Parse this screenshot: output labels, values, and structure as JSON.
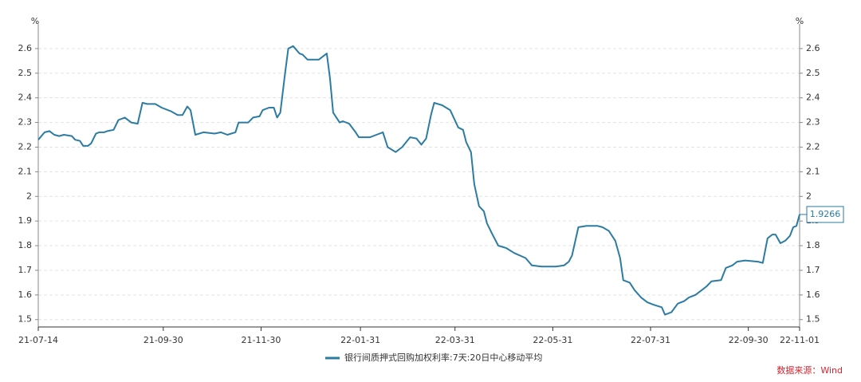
{
  "chart_data": {
    "type": "line",
    "y_unit": "%",
    "source": "数据来源：Wind",
    "x": [
      "21-07-14",
      "21-07-18",
      "21-07-21",
      "21-07-24",
      "21-07-27",
      "21-07-30",
      "21-08-04",
      "21-08-06",
      "21-08-09",
      "21-08-11",
      "21-08-14",
      "21-08-16",
      "21-08-19",
      "21-08-21",
      "21-08-24",
      "21-08-26",
      "21-08-30",
      "21-09-02",
      "21-09-06",
      "21-09-10",
      "21-09-14",
      "21-09-17",
      "21-09-20",
      "21-09-25",
      "21-09-29",
      "21-10-05",
      "21-10-09",
      "21-10-12",
      "21-10-15",
      "21-10-17",
      "21-10-20",
      "21-10-25",
      "21-11-01",
      "21-11-05",
      "21-11-09",
      "21-11-14",
      "21-11-16",
      "21-11-22",
      "21-11-25",
      "21-11-29",
      "21-12-01",
      "21-12-05",
      "21-12-08",
      "21-12-10",
      "21-12-12",
      "21-12-15",
      "21-12-17",
      "21-12-20",
      "21-12-24",
      "21-12-26",
      "21-12-29",
      "22-01-05",
      "22-01-10",
      "22-01-12",
      "22-01-14",
      "22-01-18",
      "22-01-20",
      "22-01-24",
      "22-01-28",
      "22-01-30",
      "22-02-06",
      "22-02-10",
      "22-02-14",
      "22-02-17",
      "22-02-22",
      "22-02-26",
      "22-03-03",
      "22-03-07",
      "22-03-10",
      "22-03-13",
      "22-03-16",
      "22-03-18",
      "22-03-23",
      "22-03-28",
      "22-04-02",
      "22-04-05",
      "22-04-07",
      "22-04-10",
      "22-04-12",
      "22-04-15",
      "22-04-18",
      "22-04-20",
      "22-04-23",
      "22-04-27",
      "22-05-02",
      "22-05-07",
      "22-05-14",
      "22-05-18",
      "22-05-24",
      "22-06-02",
      "22-06-07",
      "22-06-10",
      "22-06-12",
      "22-06-16",
      "22-06-21",
      "22-06-28",
      "22-07-01",
      "22-07-05",
      "22-07-09",
      "22-07-12",
      "22-07-14",
      "22-07-18",
      "22-07-21",
      "22-07-25",
      "22-07-29",
      "22-08-02",
      "22-08-07",
      "22-08-09",
      "22-08-13",
      "22-08-17",
      "22-08-21",
      "22-08-24",
      "22-08-28",
      "22-09-01",
      "22-09-04",
      "22-09-07",
      "22-09-13",
      "22-09-16",
      "22-09-20",
      "22-09-23",
      "22-09-28",
      "22-10-06",
      "22-10-09",
      "22-10-12",
      "22-10-15",
      "22-10-17",
      "22-10-20",
      "22-10-23",
      "22-10-26",
      "22-10-28",
      "22-10-30",
      "22-11-01"
    ],
    "series": [
      {
        "name": "银行间质押式回购加权利率:7天:20日中心移动平均",
        "color": "#2b7ba3",
        "values": [
          2.23,
          2.26,
          2.265,
          2.25,
          2.245,
          2.25,
          2.245,
          2.23,
          2.225,
          2.205,
          2.205,
          2.215,
          2.255,
          2.26,
          2.26,
          2.265,
          2.27,
          2.31,
          2.32,
          2.3,
          2.295,
          2.38,
          2.375,
          2.375,
          2.36,
          2.345,
          2.33,
          2.33,
          2.365,
          2.35,
          2.25,
          2.26,
          2.255,
          2.26,
          2.25,
          2.26,
          2.3,
          2.3,
          2.32,
          2.325,
          2.35,
          2.36,
          2.36,
          2.32,
          2.34,
          2.5,
          2.6,
          2.61,
          2.58,
          2.575,
          2.555,
          2.555,
          2.58,
          2.48,
          2.34,
          2.3,
          2.305,
          2.295,
          2.26,
          2.24,
          2.24,
          2.25,
          2.26,
          2.2,
          2.18,
          2.2,
          2.24,
          2.235,
          2.21,
          2.235,
          2.33,
          2.38,
          2.37,
          2.35,
          2.28,
          2.27,
          2.22,
          2.18,
          2.05,
          1.96,
          1.94,
          1.89,
          1.85,
          1.8,
          1.79,
          1.77,
          1.75,
          1.72,
          1.715,
          1.715,
          1.72,
          1.735,
          1.76,
          1.875,
          1.88,
          1.88,
          1.875,
          1.86,
          1.82,
          1.75,
          1.66,
          1.65,
          1.62,
          1.59,
          1.57,
          1.56,
          1.55,
          1.52,
          1.53,
          1.565,
          1.575,
          1.59,
          1.6,
          1.62,
          1.635,
          1.655,
          1.66,
          1.71,
          1.72,
          1.735,
          1.74,
          1.735,
          1.73,
          1.83,
          1.845,
          1.845,
          1.81,
          1.82,
          1.84,
          1.875,
          1.88,
          1.9266
        ]
      }
    ],
    "xlim": [
      "21-07-14",
      "22-11-01"
    ],
    "xticks": [
      "21-07-14",
      "21-09-30",
      "21-11-30",
      "22-01-31",
      "22-03-31",
      "22-05-31",
      "22-07-31",
      "22-09-30",
      "22-11-01"
    ],
    "ylim": [
      1.47,
      2.7
    ],
    "yticks": [
      1.5,
      1.6,
      1.7,
      1.8,
      1.9,
      2,
      2.1,
      2.2,
      2.3,
      2.4,
      2.5,
      2.6
    ],
    "grid": true,
    "legend": "bottom"
  }
}
